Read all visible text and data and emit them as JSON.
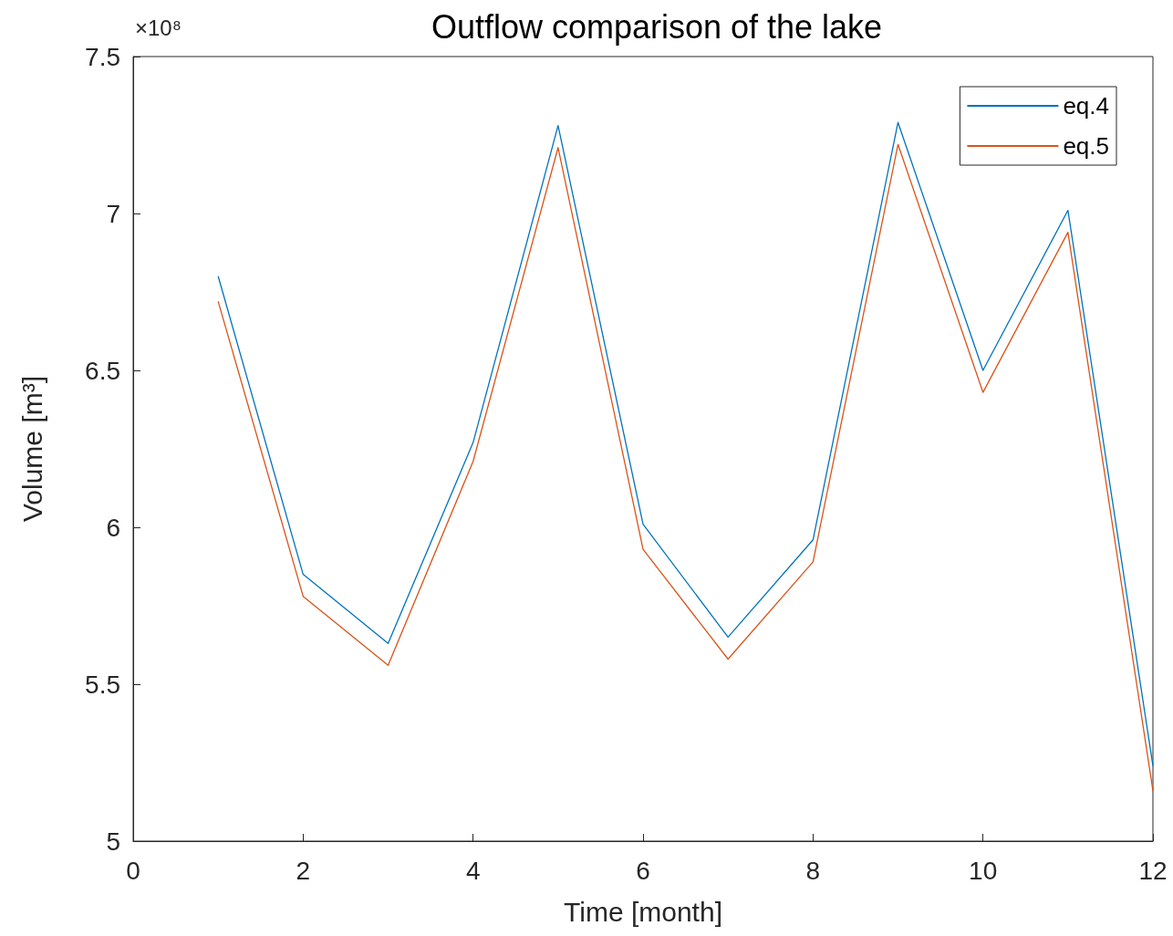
{
  "chart_data": {
    "type": "line",
    "title": "Outflow comparison of the lake",
    "xlabel": "Time [month]",
    "ylabel": "Volume [m³]",
    "annotations": [
      "×10⁸"
    ],
    "x": [
      1,
      2,
      3,
      4,
      5,
      6,
      7,
      8,
      9,
      10,
      11,
      12
    ],
    "series": [
      {
        "name": "eq.4",
        "color": "#0072bd",
        "values": [
          6.8,
          5.85,
          5.63,
          6.27,
          7.28,
          6.01,
          5.65,
          5.96,
          7.29,
          6.5,
          7.01,
          5.24
        ]
      },
      {
        "name": "eq.5",
        "color": "#d95319",
        "values": [
          6.72,
          5.78,
          5.56,
          6.21,
          7.21,
          5.93,
          5.58,
          5.89,
          7.22,
          6.43,
          6.94,
          5.16
        ]
      }
    ],
    "xlim": [
      0,
      12
    ],
    "xticks": [
      0,
      2,
      4,
      6,
      8,
      10,
      12
    ],
    "ylim": [
      5,
      7.5
    ],
    "yticks": [
      5,
      5.5,
      6,
      6.5,
      7,
      7.5
    ],
    "grid": false,
    "legend": "top right",
    "marker": "none",
    "line_style": "solid"
  }
}
